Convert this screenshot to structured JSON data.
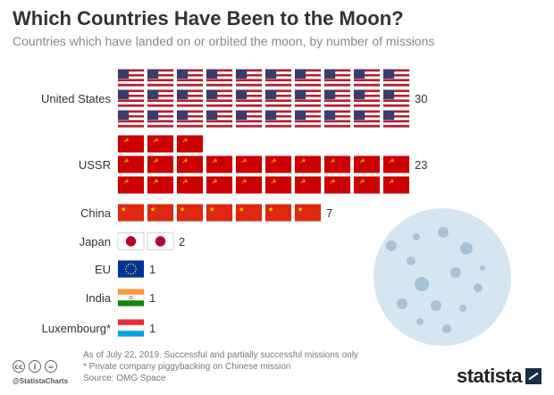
{
  "header": {
    "title": "Which Countries Have Been to the Moon?",
    "subtitle": "Countries which have landed on or orbited the moon, by number of missions"
  },
  "chart_data": {
    "type": "bar",
    "categories": [
      "United States",
      "USSR",
      "China",
      "Japan",
      "EU",
      "India",
      "Luxembourg*"
    ],
    "values": [
      30,
      23,
      7,
      2,
      1,
      1,
      1
    ],
    "value_labels": [
      "30",
      "23",
      "7",
      "2",
      "1",
      "1",
      "1"
    ],
    "flags": [
      "usa-flag-icon",
      "ussr-flag-icon",
      "china-flag-icon",
      "japan-flag-icon",
      "eu-flag-icon",
      "india-flag-icon",
      "luxembourg-flag-icon"
    ],
    "unit_icon": "one flag = one mission",
    "title": "Which Countries Have Been to the Moon?",
    "subtitle": "Countries which have landed on or orbited the moon, by number of missions"
  },
  "footnotes": {
    "note1": "As of July 22, 2019. Successful and partially successful missions only",
    "note2": "* Private company piggybacking on Chinese mission",
    "source": "Source: OMG Space"
  },
  "footer": {
    "handle": "@StatistaCharts",
    "brand": "statista",
    "cc_icons": [
      "cc-icon",
      "by-icon",
      "equal-icon"
    ]
  },
  "colors": {
    "usa_blue": "#3c3b6e",
    "usa_red": "#b22234",
    "soviet_red": "#cc0000",
    "china_red": "#de2910",
    "moon": "#d4e6f1",
    "crater": "#a9c3d6"
  }
}
